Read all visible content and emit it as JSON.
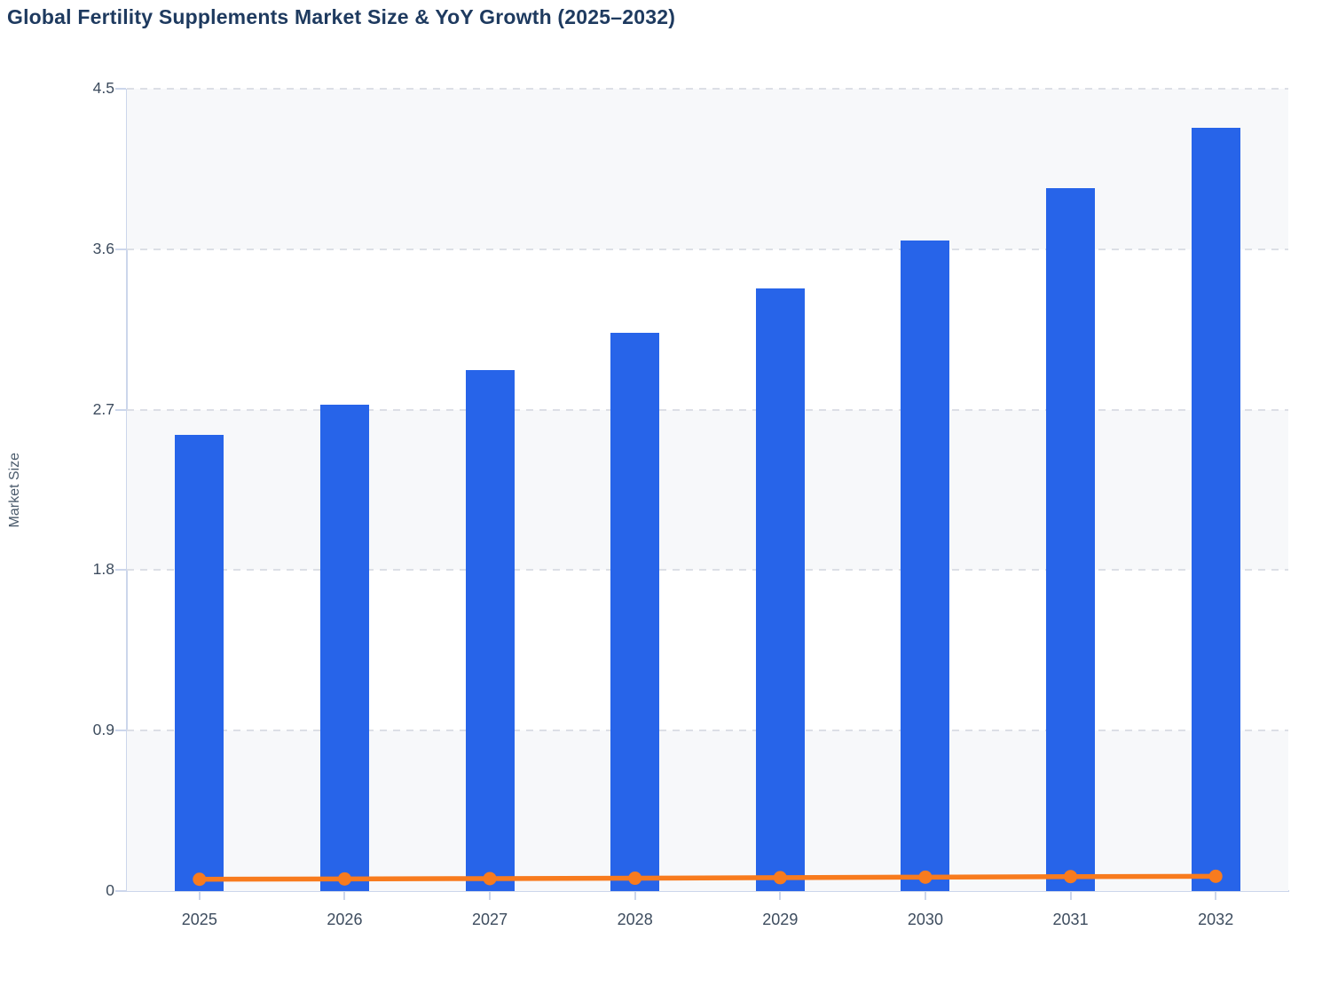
{
  "title": "Global Fertility Supplements Market Size & YoY Growth (2025–2032)",
  "colors": {
    "title_text": "#1e3a5f",
    "bar_fill": "#2764e9",
    "line_stroke": "#f87b1e",
    "axis_line": "#ccd6eb",
    "gridline": "#dcdfe6",
    "plot_band": "#f7f8fa",
    "tick_label": "#3d4c5e",
    "y_axis_title_text": "#4a5a6b"
  },
  "chart_data": {
    "type": "bar",
    "title": "Global Fertility Supplements Market Size & YoY Growth (2025–2032)",
    "categories": [
      "2025",
      "2026",
      "2027",
      "2028",
      "2029",
      "2030",
      "2031",
      "2032"
    ],
    "series": [
      {
        "name": "Market Size",
        "type": "bar",
        "color": "#2764e9",
        "values": [
          2.56,
          2.73,
          2.92,
          3.13,
          3.38,
          3.65,
          3.94,
          4.28
        ]
      },
      {
        "name": "YoY Growth",
        "type": "line",
        "color": "#f87b1e",
        "values": [
          0.066,
          0.068,
          0.07,
          0.072,
          0.075,
          0.078,
          0.081,
          0.083
        ]
      }
    ],
    "xlabel": "",
    "ylabel": "Market Size",
    "ylim": [
      0,
      4.5
    ],
    "yticks": [
      0,
      0.9,
      1.8,
      2.7,
      3.6,
      4.5
    ],
    "ytick_labels": [
      "0",
      "0.9",
      "1.8",
      "2.7",
      "3.6",
      "4.5"
    ],
    "grid": "horizontal-dashed",
    "alternate_bands": true,
    "legend": "none"
  }
}
